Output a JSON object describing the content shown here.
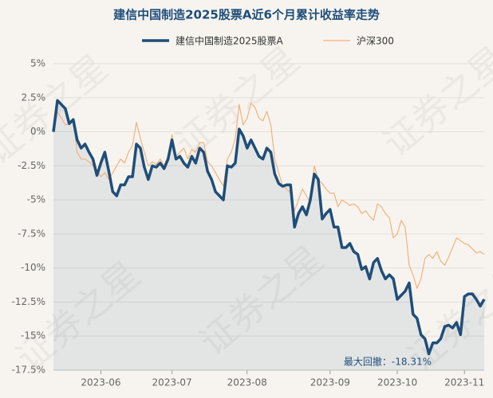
{
  "chart_data": {
    "type": "line",
    "title": "建信中国制造2025股票A近6个月累计收益率走势",
    "watermark": "证券之星",
    "annotation": "最大回撤：-18.31%",
    "grid": true,
    "legend": "top",
    "ylim": [
      -17.5,
      5
    ],
    "yticks": [
      {
        "value": 5,
        "label": "5%"
      },
      {
        "value": 2.5,
        "label": "2.5%"
      },
      {
        "value": 0,
        "label": "0%"
      },
      {
        "value": -2.5,
        "label": "-2.5%"
      },
      {
        "value": -5,
        "label": "-5%"
      },
      {
        "value": -7.5,
        "label": "-7.5%"
      },
      {
        "value": -10,
        "label": "-10%"
      },
      {
        "value": -12.5,
        "label": "-12.5%"
      },
      {
        "value": -15,
        "label": "-15%"
      },
      {
        "value": -17.5,
        "label": "-17.5%"
      }
    ],
    "categories": [
      null,
      null,
      null,
      null,
      null,
      null,
      null,
      null,
      null,
      null,
      null,
      null,
      "2023-06",
      null,
      null,
      null,
      null,
      null,
      null,
      null,
      null,
      null,
      null,
      null,
      null,
      null,
      null,
      null,
      null,
      null,
      "2023-07",
      null,
      null,
      null,
      null,
      null,
      null,
      null,
      null,
      null,
      null,
      null,
      null,
      null,
      null,
      null,
      null,
      null,
      null,
      "2023-08",
      null,
      null,
      null,
      null,
      null,
      null,
      null,
      null,
      null,
      null,
      null,
      null,
      null,
      null,
      null,
      null,
      null,
      null,
      null,
      null,
      "2023-09",
      null,
      null,
      null,
      null,
      null,
      null,
      null,
      null,
      null,
      null,
      null,
      null,
      null,
      null,
      null,
      null,
      "2023-10",
      null,
      null,
      null,
      null,
      null,
      null,
      null,
      null,
      null,
      null,
      null,
      null,
      null,
      null,
      null,
      null,
      "2023-11",
      null,
      null,
      null,
      null,
      null
    ],
    "series": [
      {
        "name": "建信中国制造2025股票A",
        "color": "#1f4e79",
        "area": true,
        "width": 3.5,
        "values": [
          0,
          2.3,
          2.0,
          1.7,
          0.6,
          0.9,
          -0.6,
          -1.2,
          -0.9,
          -1.5,
          -2.0,
          -3.2,
          -2.3,
          -1.5,
          -2.9,
          -4.4,
          -4.7,
          -3.9,
          -3.9,
          -3.3,
          -3.3,
          -0.9,
          -1.2,
          -2.6,
          -3.5,
          -2.5,
          -2.6,
          -2.3,
          -2.7,
          -2.0,
          -0.6,
          -2.0,
          -1.8,
          -2.3,
          -2.6,
          -1.8,
          -2.3,
          -1.2,
          -1.5,
          -2.9,
          -3.5,
          -4.4,
          -4.7,
          -5.0,
          -2.5,
          -2.6,
          -2.3,
          0.2,
          -0.3,
          -1.2,
          -0.6,
          -1.2,
          -1.8,
          -2.0,
          -1.2,
          -1.5,
          -3.1,
          -3.8,
          -4.0,
          -3.9,
          -3.9,
          -7.0,
          -6.0,
          -5.5,
          -6.1,
          -5.0,
          -3.1,
          -3.5,
          -6.4,
          -6.0,
          -5.7,
          -7.0,
          -7.0,
          -8.5,
          -8.5,
          -8.2,
          -8.8,
          -9.0,
          -10.1,
          -9.9,
          -10.8,
          -9.6,
          -9.3,
          -10.2,
          -10.8,
          -10.5,
          -10.8,
          -12.3,
          -12.0,
          -11.7,
          -11.1,
          -13.4,
          -13.7,
          -14.9,
          -15.2,
          -16.3,
          -15.5,
          -15.5,
          -15.2,
          -14.3,
          -14.2,
          -14.4,
          -14.0,
          -14.9,
          -12.1,
          -11.9,
          -11.9,
          -12.3,
          -12.8,
          -12.3
        ]
      },
      {
        "name": "沪深300",
        "color": "#f2b27a",
        "width": 1.2,
        "values": [
          0,
          1.5,
          1.0,
          0.5,
          0.6,
          0.9,
          -1.5,
          -2.0,
          -2.0,
          -2.2,
          -2.5,
          -2.8,
          -3.3,
          -3.0,
          -3.5,
          -3.0,
          -2.5,
          -2.0,
          -2.3,
          -1.5,
          -1.0,
          0.7,
          -0.5,
          -1.5,
          -2.5,
          -2.2,
          -2.4,
          -2.0,
          -2.5,
          -1.8,
          -0.2,
          -1.8,
          -1.5,
          -1.2,
          -2.0,
          -1.3,
          -1.5,
          -0.8,
          -0.8,
          -2.2,
          -2.5,
          -3.0,
          -3.5,
          -4.0,
          -2.0,
          -1.5,
          -0.5,
          2.0,
          0.5,
          1.0,
          2.1,
          1.8,
          1.0,
          0.8,
          1.5,
          0.5,
          -2.0,
          -3.0,
          -4.0,
          -4.2,
          -4.5,
          -5.8,
          -5.0,
          -4.2,
          -4.7,
          -5.2,
          -2.5,
          -3.5,
          -3.8,
          -4.2,
          -4.5,
          -4.5,
          -5.5,
          -5.0,
          -5.2,
          -5.4,
          -5.3,
          -5.5,
          -6.0,
          -5.8,
          -6.2,
          -6.5,
          -5.3,
          -5.5,
          -6.0,
          -6.3,
          -7.8,
          -7.5,
          -6.5,
          -7.0,
          -9.8,
          -10.5,
          -11.5,
          -10.8,
          -9.3,
          -9.0,
          -9.3,
          -8.8,
          -9.5,
          -9.8,
          -9.2,
          -8.5,
          -7.8,
          -8.0,
          -8.2,
          -8.3,
          -8.6,
          -8.9,
          -8.8,
          -9.0
        ]
      }
    ]
  }
}
